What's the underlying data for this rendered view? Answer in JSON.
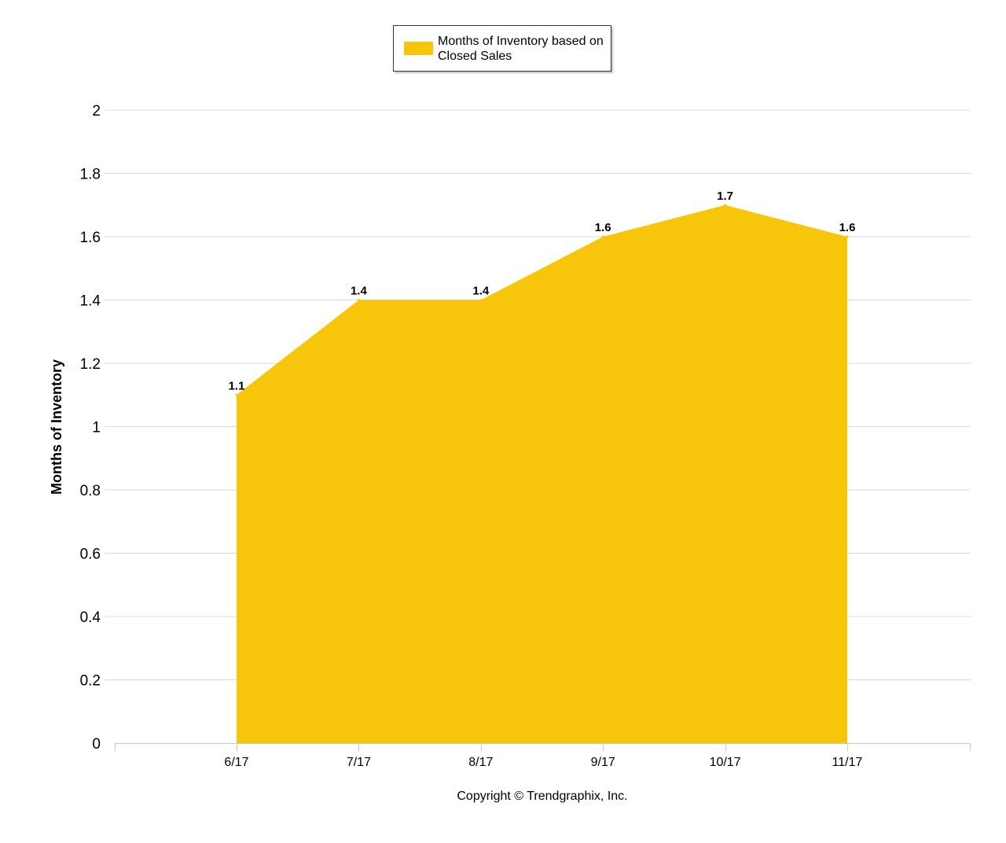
{
  "legend": {
    "label": "Months of Inventory based on Closed Sales"
  },
  "copyright": "Copyright © Trendgraphix, Inc.",
  "colors": {
    "area_fill": "#f7c509",
    "grid": "#d8d8d8",
    "axis": "#c8c8c8",
    "text": "#000000"
  },
  "chart_data": {
    "type": "area",
    "categories": [
      "6/17",
      "7/17",
      "8/17",
      "9/17",
      "10/17",
      "11/17"
    ],
    "series": [
      {
        "name": "Months of Inventory based on Closed Sales",
        "values": [
          1.1,
          1.4,
          1.4,
          1.6,
          1.7,
          1.6
        ]
      }
    ],
    "data_labels": [
      "1.1",
      "1.4",
      "1.4",
      "1.6",
      "1.7",
      "1.6"
    ],
    "xlabel": "",
    "ylabel": "Months of Inventory",
    "ylim": [
      0,
      2
    ],
    "yticks": [
      "0",
      "0.2",
      "0.4",
      "0.6",
      "0.8",
      "1",
      "1.2",
      "1.4",
      "1.6",
      "1.8",
      "2"
    ],
    "grid": true,
    "legend_position": "top-center"
  }
}
